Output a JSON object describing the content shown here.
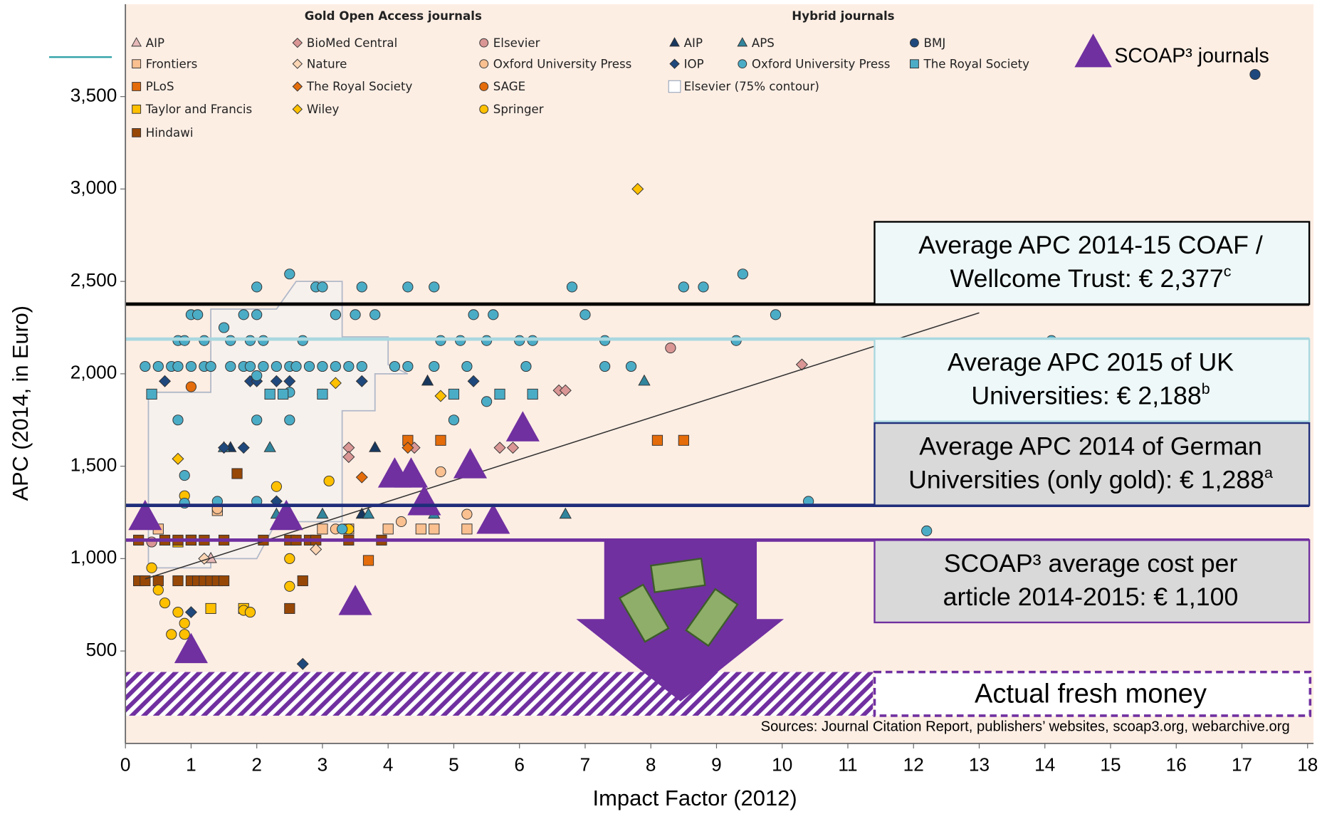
{
  "chart_data": {
    "type": "scatter",
    "x_label": "Impact Factor (2012)",
    "y_label": "APC (2014, in Euro)",
    "xlim": [
      0,
      18
    ],
    "ylim": [
      0,
      4000
    ],
    "xticks": [
      0,
      1,
      2,
      3,
      4,
      5,
      6,
      7,
      8,
      9,
      10,
      11,
      12,
      13,
      14,
      15,
      16,
      17,
      18
    ],
    "yticks": [
      {
        "value": 500,
        "label": "500"
      },
      {
        "value": 1000,
        "label": "1,000"
      },
      {
        "value": 1500,
        "label": "1,500"
      },
      {
        "value": 2000,
        "label": "2,000"
      },
      {
        "value": 2500,
        "label": "2,500"
      },
      {
        "value": 3000,
        "label": "3,000"
      },
      {
        "value": 3500,
        "label": "3,500"
      }
    ],
    "series_groups": [
      {
        "title": "Gold Open Access journals",
        "series": [
          {
            "name": "AIP",
            "color": "#e6b9b8",
            "marker": "triangle",
            "x": [
              1.3
            ],
            "y": [
              1000
            ]
          },
          {
            "name": "Frontiers",
            "color": "#fac090",
            "marker": "square",
            "x": [
              1.4,
              3.0,
              3.4,
              4.0,
              4.5,
              4.7,
              5.2,
              0.5
            ],
            "y": [
              1260,
              1160,
              1160,
              1160,
              1160,
              1160,
              1160,
              1160
            ]
          },
          {
            "name": "PLoS",
            "color": "#e46c0a",
            "marker": "square",
            "x": [
              4.3,
              4.8,
              8.1,
              8.5,
              3.7
            ],
            "y": [
              1640,
              1640,
              1640,
              1640,
              990
            ]
          },
          {
            "name": "Taylor and Francis",
            "color": "#ffc000",
            "marker": "square",
            "x": [
              1.3,
              1.8,
              1.0,
              0.8
            ],
            "y": [
              730,
              730,
              1100,
              1090
            ]
          },
          {
            "name": "Hindawi",
            "color": "#974706",
            "marker": "square",
            "x": [
              0.2,
              0.3,
              0.5,
              0.8,
              1.0,
              1.1,
              1.2,
              1.3,
              1.4,
              1.5,
              0.2,
              0.6,
              0.8,
              1.0,
              1.2,
              1.5,
              2.1,
              2.5,
              2.6,
              2.8,
              2.9,
              3.4,
              3.9,
              1.7,
              2.7,
              2.5
            ],
            "y": [
              880,
              880,
              880,
              880,
              880,
              880,
              880,
              880,
              880,
              880,
              1100,
              1100,
              1100,
              1100,
              1100,
              1100,
              1100,
              1100,
              1100,
              1100,
              1100,
              1100,
              1100,
              1460,
              880,
              730
            ]
          },
          {
            "name": "BioMed Central",
            "color": "#d99694",
            "marker": "diamond",
            "x": [
              3.4,
              3.4,
              4.4,
              5.7,
              5.9,
              6.6,
              6.7,
              10.3
            ],
            "y": [
              1600,
              1550,
              1600,
              1600,
              1600,
              1910,
              1910,
              2050
            ]
          },
          {
            "name": "Nature",
            "color": "#fcd5b5",
            "marker": "diamond",
            "x": [
              2.9,
              1.2
            ],
            "y": [
              1050,
              1000
            ]
          },
          {
            "name": "The Royal Society",
            "color": "#e46c0a",
            "marker": "diamond",
            "x": [
              3.6,
              4.3
            ],
            "y": [
              1440,
              1600
            ]
          },
          {
            "name": "Wiley",
            "color": "#ffc000",
            "marker": "diamond",
            "x": [
              0.8,
              4.8,
              7.8,
              3.2
            ],
            "y": [
              1540,
              1880,
              3000,
              1950
            ]
          },
          {
            "name": "Elsevier",
            "color": "#d99694",
            "marker": "circle",
            "x": [
              8.3,
              0.4
            ],
            "y": [
              2140,
              1090
            ]
          },
          {
            "name": "Oxford University Press",
            "color": "#fac090",
            "marker": "circle",
            "x": [
              3.2,
              4.2,
              4.8,
              5.2,
              1.4
            ],
            "y": [
              1160,
              1200,
              1470,
              1240,
              1270
            ]
          },
          {
            "name": "SAGE",
            "color": "#e46c0a",
            "marker": "circle",
            "x": [
              1.0
            ],
            "y": [
              1930
            ]
          },
          {
            "name": "Springer",
            "color": "#ffc000",
            "marker": "circle",
            "x": [
              0.5,
              0.6,
              0.8,
              0.9,
              0.7,
              0.9,
              1.8,
              1.9,
              2.5,
              2.3,
              0.9,
              3.1,
              3.4,
              2.5,
              0.4
            ],
            "y": [
              830,
              760,
              710,
              650,
              590,
              590,
              720,
              710,
              1000,
              1390,
              1340,
              1420,
              1160,
              850,
              950
            ]
          }
        ]
      },
      {
        "title": "Hybrid journals",
        "series": [
          {
            "name": "AIP",
            "color": "#17375e",
            "marker": "triangle",
            "x": [
              1.6,
              3.8,
              4.6,
              3.6
            ],
            "y": [
              1600,
              1600,
              1960,
              1240
            ]
          },
          {
            "name": "APS",
            "color": "#31859c",
            "marker": "triangle",
            "x": [
              1.5,
              2.2,
              2.3,
              3.0,
              3.7,
              4.7,
              6.7,
              7.9
            ],
            "y": [
              1600,
              1600,
              1240,
              1240,
              1240,
              1240,
              1240,
              1960
            ]
          },
          {
            "name": "BMJ",
            "color": "#1f497d",
            "marker": "circle",
            "x": [
              17.2
            ],
            "y": [
              3620
            ]
          },
          {
            "name": "IOP",
            "color": "#1f497d",
            "marker": "diamond",
            "x": [
              0.6,
              1.9,
              2.0,
              2.3,
              2.5,
              3.6,
              1.5,
              1.8,
              2.3,
              5.3,
              1.0,
              2.7
            ],
            "y": [
              1960,
              1960,
              1960,
              1960,
              1960,
              1960,
              1600,
              1600,
              1310,
              1960,
              710,
              430
            ]
          },
          {
            "name": "Oxford University Press",
            "color": "#4bacc6",
            "marker": "circle",
            "x": [
              2.5,
              2.0,
              2.9,
              3.0,
              3.6,
              4.3,
              4.7,
              6.8,
              8.5,
              8.8,
              9.4,
              1.0,
              1.1,
              1.8,
              2.0,
              3.2,
              3.5,
              3.8,
              5.3,
              5.6,
              7.0,
              9.9,
              1.5,
              0.8,
              0.9,
              1.2,
              1.6,
              1.9,
              2.1,
              2.7,
              4.8,
              5.1,
              5.5,
              6.0,
              6.2,
              7.3,
              9.3,
              14.1,
              0.3,
              0.5,
              0.7,
              0.8,
              1.0,
              1.2,
              1.3,
              1.6,
              1.8,
              1.9,
              2.1,
              2.3,
              2.5,
              2.6,
              2.8,
              3.0,
              3.2,
              3.4,
              3.6,
              4.1,
              4.3,
              4.7,
              5.2,
              6.1,
              7.3,
              7.7,
              2.0,
              2.5,
              5.0,
              0.8,
              2.0,
              3.0,
              0.9,
              2.0,
              1.4,
              3.3,
              5.5,
              10.4,
              12.2,
              2.5,
              0.9
            ],
            "y": [
              2540,
              2470,
              2470,
              2470,
              2470,
              2470,
              2470,
              2470,
              2470,
              2470,
              2540,
              2320,
              2320,
              2320,
              2320,
              2320,
              2320,
              2320,
              2320,
              2320,
              2320,
              2320,
              2250,
              2180,
              2180,
              2180,
              2180,
              2180,
              2180,
              2180,
              2180,
              2180,
              2180,
              2180,
              2180,
              2180,
              2180,
              2180,
              2040,
              2040,
              2040,
              2040,
              2040,
              2040,
              2040,
              2040,
              2040,
              2040,
              2040,
              2040,
              2040,
              2040,
              2040,
              2040,
              2040,
              2040,
              2040,
              2040,
              2040,
              2040,
              2040,
              2040,
              2040,
              2040,
              1750,
              1750,
              1750,
              1750,
              1990,
              1890,
              1450,
              1310,
              1310,
              1160,
              1850,
              1310,
              1150,
              1900,
              1300
            ]
          },
          {
            "name": "The Royal Society",
            "color": "#4bacc6",
            "marker": "square",
            "x": [
              0.4,
              2.2,
              2.4,
              3.0,
              5.0,
              5.7,
              6.2
            ],
            "y": [
              1890,
              1890,
              1890,
              1890,
              1890,
              1890,
              1890
            ]
          },
          {
            "name": "Elsevier (75% contour)",
            "color": "#8497b0",
            "marker": "contour",
            "x": [
              0.35,
              1.3,
              1.3,
              2.3,
              2.6,
              3.3,
              3.3,
              4.0,
              4.0,
              4.3,
              3.8,
              3.8,
              3.3,
              3.3,
              2.3,
              2.0,
              1.3,
              1.3,
              0.35
            ],
            "y": [
              1900,
              1900,
              2350,
              2350,
              2500,
              2500,
              2200,
              2200,
              2050,
              2000,
              2000,
              1800,
              1800,
              1200,
              1200,
              1000,
              1000,
              950,
              950
            ]
          }
        ]
      }
    ],
    "scoap3": {
      "name": "SCOAP³ journals",
      "color": "#7030a0",
      "marker": "triangle",
      "x": [
        0.3,
        2.45,
        4.1,
        4.35,
        4.55,
        5.25,
        5.6,
        6.05,
        3.5,
        1.0
      ],
      "y": [
        1220,
        1220,
        1450,
        1450,
        1300,
        1500,
        1200,
        1700,
        760,
        500
      ]
    },
    "trend_line": {
      "x": [
        0.3,
        13
      ],
      "y": [
        890,
        2330
      ]
    },
    "reference_lines": [
      {
        "value": 2377,
        "color": "#000000",
        "label_lines": [
          "Average APC 2014-15 COAF /",
          "Wellcome Trust: € 2,377"
        ],
        "sup": "c"
      },
      {
        "value": 2188,
        "color": "#a9d8e0",
        "label_lines": [
          "Average APC 2015 of UK",
          "Universities: € 2,188"
        ],
        "sup": "b"
      },
      {
        "value": 1288,
        "color": "#1f2d7a",
        "label_lines": [
          "Average APC 2014 of German",
          "Universities (only gold): € 1,288"
        ],
        "sup": "a"
      },
      {
        "value": 1100,
        "color": "#7030a0",
        "label_lines": [
          "SCOAP³ average cost per",
          "article 2014-2015: € 1,100"
        ]
      }
    ],
    "fresh_money_label": "Actual fresh money",
    "sources": "Sources: Journal Citation Report, publishers’ websites, scoap3.org, webarchive.org"
  }
}
